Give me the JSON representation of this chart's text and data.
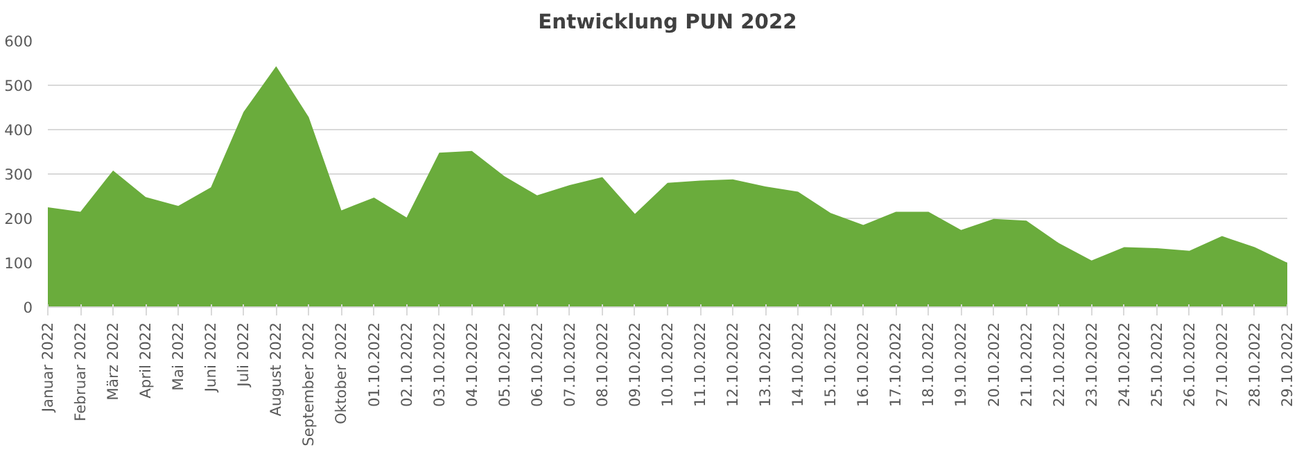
{
  "chart_data": {
    "type": "area",
    "title": "Entwicklung PUN 2022",
    "categories": [
      "Januar 2022",
      "Februar 2022",
      "März 2022",
      "April 2022",
      "Mai 2022",
      "Juni 2022",
      "Juli 2022",
      "August 2022",
      "September 2022",
      "Oktober 2022",
      "01.10.2022",
      "02.10.2022",
      "03.10.2022",
      "04.10.2022",
      "05.10.2022",
      "06.10.2022",
      "07.10.2022",
      "08.10.2022",
      "09.10.2022",
      "10.10.2022",
      "11.10.2022",
      "12.10.2022",
      "13.10.2022",
      "14.10.2022",
      "15.10.2022",
      "16.10.2022",
      "17.10.2022",
      "18.10.2022",
      "19.10.2022",
      "20.10.2022",
      "21.10.2022",
      "22.10.2022",
      "23.10.2022",
      "24.10.2022",
      "25.10.2022",
      "26.10.2022",
      "27.10.2022",
      "28.10.2022",
      "29.10.2022"
    ],
    "series": [
      {
        "color": "#6aac3c",
        "values": [
          225,
          215,
          308,
          248,
          228,
          270,
          440,
          543,
          428,
          218,
          247,
          202,
          348,
          352,
          295,
          252,
          275,
          293,
          210,
          280,
          285,
          288,
          272,
          260,
          212,
          185,
          215,
          215,
          174,
          199,
          195,
          144,
          105,
          135,
          133,
          127,
          160,
          135,
          100
        ]
      }
    ],
    "ylim": [
      0,
      600
    ],
    "yticks": [
      0,
      100,
      200,
      300,
      400,
      500,
      600
    ],
    "grid": "y"
  }
}
